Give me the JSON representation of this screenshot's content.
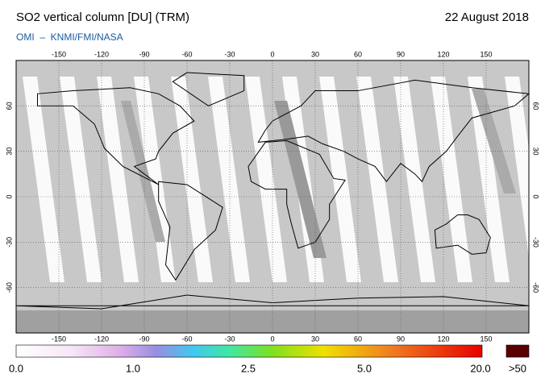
{
  "header": {
    "title": "SO2 vertical column [DU] (TRM)",
    "date": "22 August 2018",
    "credit": "OMI  –  KNMI/FMI/NASA"
  },
  "map": {
    "lon_ticks": [
      "-150",
      "-120",
      "-90",
      "-60",
      "-30",
      "0",
      "30",
      "60",
      "90",
      "120",
      "150"
    ],
    "lat_ticks": [
      "60",
      "30",
      "0",
      "-30",
      "-60"
    ]
  },
  "colorbar": {
    "labels": [
      "0.0",
      "1.0",
      "2.5",
      "5.0",
      "20.0"
    ],
    "overflow_label": ">50"
  }
}
